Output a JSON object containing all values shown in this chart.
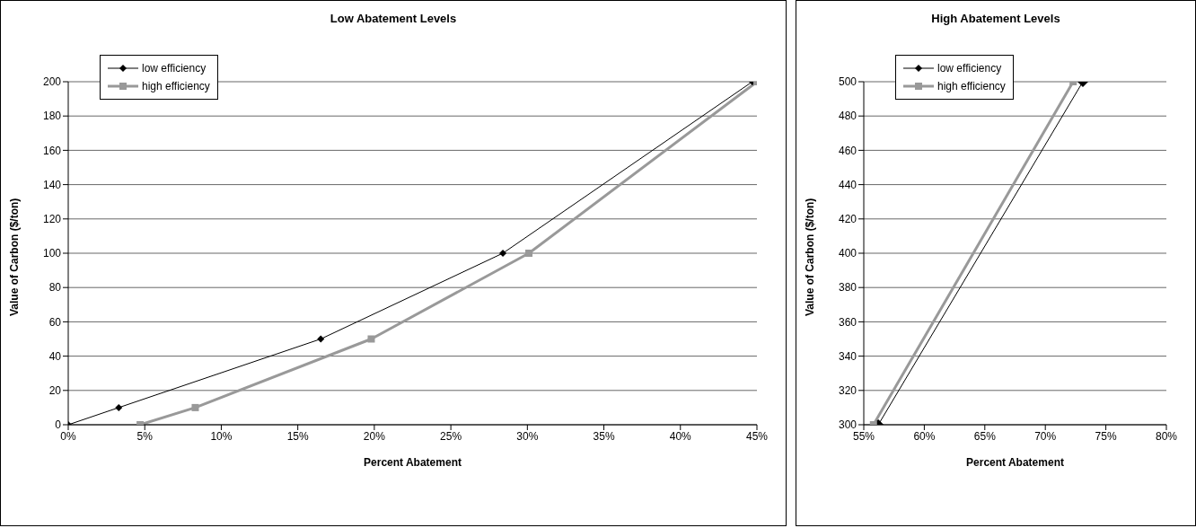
{
  "chart_data": [
    {
      "type": "line",
      "title": "Low Abatement Levels",
      "xlabel": "Percent Abatement",
      "ylabel": "Value of Carbon ($/ton)",
      "xlim": [
        0,
        45
      ],
      "xticks": [
        {
          "value": 0,
          "label": "0%"
        },
        {
          "value": 5,
          "label": "5%"
        },
        {
          "value": 10,
          "label": "10%"
        },
        {
          "value": 15,
          "label": "15%"
        },
        {
          "value": 20,
          "label": "20%"
        },
        {
          "value": 25,
          "label": "25%"
        },
        {
          "value": 30,
          "label": "30%"
        },
        {
          "value": 35,
          "label": "35%"
        },
        {
          "value": 40,
          "label": "40%"
        },
        {
          "value": 45,
          "label": "45%"
        }
      ],
      "ylim": [
        0,
        200
      ],
      "yticks": [
        0,
        20,
        40,
        60,
        80,
        100,
        120,
        140,
        160,
        180,
        200
      ],
      "grid": "y",
      "legend": "top left",
      "series": [
        {
          "name": "low efficiency",
          "color": "#000000",
          "marker": "diamond",
          "x": [
            0,
            3.3,
            16.5,
            28.4,
            44.7
          ],
          "values": [
            0,
            10,
            50,
            100,
            200
          ]
        },
        {
          "name": "high efficiency",
          "color": "#999999",
          "marker": "square",
          "x": [
            4.7,
            8.3,
            19.8,
            30.1,
            45
          ],
          "values": [
            0,
            10,
            50,
            100,
            200
          ]
        }
      ]
    },
    {
      "type": "line",
      "title": "High Abatement Levels",
      "xlabel": "Percent Abatement",
      "ylabel": "Value of Carbon ($/ton)",
      "xlim": [
        55,
        80
      ],
      "xticks": [
        {
          "value": 55,
          "label": "55%"
        },
        {
          "value": 60,
          "label": "60%"
        },
        {
          "value": 65,
          "label": "65%"
        },
        {
          "value": 70,
          "label": "70%"
        },
        {
          "value": 75,
          "label": "75%"
        },
        {
          "value": 80,
          "label": "80%"
        }
      ],
      "ylim": [
        300,
        500
      ],
      "yticks": [
        300,
        320,
        340,
        360,
        380,
        400,
        420,
        440,
        460,
        480,
        500
      ],
      "grid": "y",
      "legend": "top left",
      "series": [
        {
          "name": "low efficiency",
          "color": "#000000",
          "marker": "diamond",
          "x": [
            56.2,
            73.1
          ],
          "values": [
            300,
            500
          ]
        },
        {
          "name": "high efficiency",
          "color": "#999999",
          "marker": "square",
          "x": [
            55.8,
            72.3
          ],
          "values": [
            300,
            500
          ]
        }
      ]
    }
  ]
}
